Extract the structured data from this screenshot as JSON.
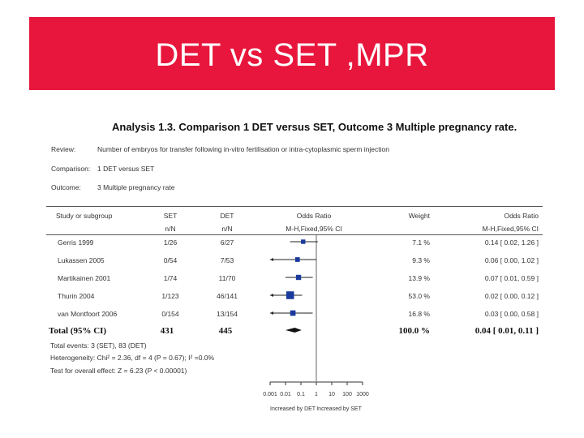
{
  "slide": {
    "title": "DET vs SET ,MPR",
    "banner_color": "#e8163c"
  },
  "analysis": {
    "heading": "Analysis 1.3.   Comparison 1 DET versus SET, Outcome 3 Multiple pregnancy rate.",
    "review_key": "Review:",
    "review_value": "Number of embryos for transfer following in-vitro fertilisation or intra-cytoplasmic sperm injection",
    "comparison_key": "Comparison:",
    "comparison_value": "1 DET versus SET",
    "outcome_key": "Outcome:",
    "outcome_value": "3 Multiple pregnancy rate"
  },
  "columns": {
    "study": "Study or subgroup",
    "set": "SET",
    "set_sub": "n/N",
    "det": "DET",
    "det_sub": "n/N",
    "or": "Odds Ratio",
    "or_sub": "M-H,Fixed,95% CI",
    "weight": "Weight",
    "or2": "Odds Ratio",
    "or2_sub": "M-H,Fixed,95% CI"
  },
  "chart_data": {
    "type": "forest",
    "x_scale": "log",
    "xlim": [
      0.001,
      1000
    ],
    "x_ticks": [
      0.001,
      0.01,
      0.1,
      1,
      10,
      100,
      1000
    ],
    "x_tick_labels": [
      "0.001",
      "0.01",
      "0.1",
      "1",
      "10",
      "100",
      "1000"
    ],
    "favours_left": "Increased by DET",
    "favours_right": "Increased by SET",
    "marker_color": "#1a3a9e",
    "studies": [
      {
        "name": "Gerris 1999",
        "set": "1/26",
        "det": "6/27",
        "weight_pct": 7.1,
        "weight": "7.1 %",
        "or": 0.14,
        "lo": 0.02,
        "hi": 1.26,
        "ci": "0.14 [ 0.02, 1.26 ]"
      },
      {
        "name": "Lukassen 2005",
        "set": "0/54",
        "det": "7/53",
        "weight_pct": 9.3,
        "weight": "9.3 %",
        "or": 0.06,
        "lo": 0.001,
        "hi": 1.02,
        "ci": "0.06 [ 0.00, 1.02 ]"
      },
      {
        "name": "Martikainen 2001",
        "set": "1/74",
        "det": "11/70",
        "weight_pct": 13.9,
        "weight": "13.9 %",
        "or": 0.07,
        "lo": 0.01,
        "hi": 0.59,
        "ci": "0.07 [ 0.01, 0.59 ]"
      },
      {
        "name": "Thurin 2004",
        "set": "1/123",
        "det": "46/141",
        "weight_pct": 53.0,
        "weight": "53.0 %",
        "or": 0.02,
        "lo": 0.001,
        "hi": 0.12,
        "ci": "0.02 [ 0.00, 0.12 ]"
      },
      {
        "name": "van Montfoort 2006",
        "set": "0/154",
        "det": "13/154",
        "weight_pct": 16.8,
        "weight": "16.8 %",
        "or": 0.03,
        "lo": 0.001,
        "hi": 0.58,
        "ci": "0.03 [ 0.00, 0.58 ]"
      }
    ],
    "total": {
      "label": "Total (95% CI)",
      "set": "431",
      "det": "445",
      "weight": "100.0 %",
      "or": 0.04,
      "lo": 0.01,
      "hi": 0.11,
      "ci": "0.04 [ 0.01, 0.11 ]"
    }
  },
  "footer": {
    "events": "Total events: 3 (SET), 83 (DET)",
    "heterogeneity": "Heterogeneity: Chi² = 2.36, df = 4 (P = 0.67); I² =0.0%",
    "overall": "Test for overall effect: Z = 6.23 (P < 0.00001)"
  }
}
